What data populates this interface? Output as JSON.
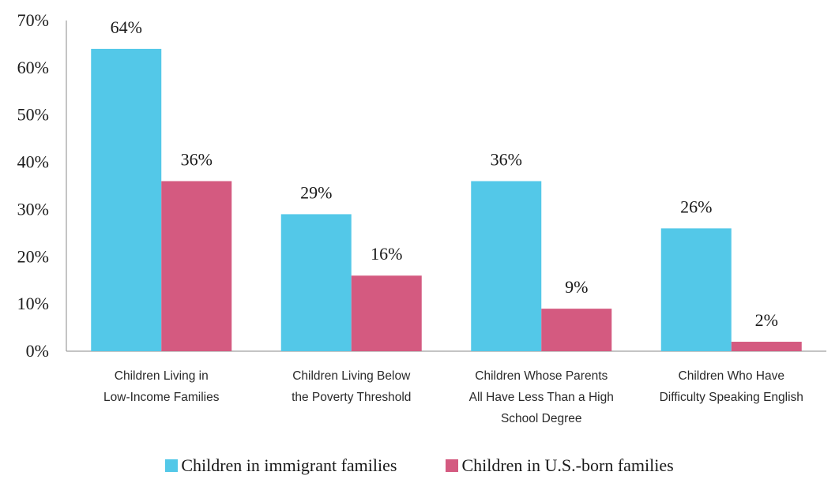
{
  "chart_data": {
    "type": "bar",
    "title": "",
    "xlabel": "",
    "ylabel": "",
    "ylim": [
      0,
      70
    ],
    "yticks": [
      "0%",
      "10%",
      "20%",
      "30%",
      "40%",
      "50%",
      "60%",
      "70%"
    ],
    "ytick_values": [
      0,
      10,
      20,
      30,
      40,
      50,
      60,
      70
    ],
    "categories": [
      [
        "Children Living in",
        "Low-Income Families"
      ],
      [
        "Children Living Below",
        "the Poverty Threshold"
      ],
      [
        "Children Whose Parents",
        "All Have Less Than a High",
        "School Degree"
      ],
      [
        "Children Who Have",
        "Difficulty Speaking English"
      ]
    ],
    "series": [
      {
        "name": "Children in immigrant families",
        "color": "#53c8e8",
        "values": [
          64,
          29,
          36,
          26
        ],
        "labels": [
          "64%",
          "29%",
          "36%",
          "26%"
        ]
      },
      {
        "name": "Children in U.S.-born families",
        "color": "#d45a80",
        "values": [
          36,
          16,
          9,
          2
        ],
        "labels": [
          "36%",
          "16%",
          "9%",
          "2%"
        ]
      }
    ],
    "grid": false,
    "legend_position": "bottom"
  }
}
